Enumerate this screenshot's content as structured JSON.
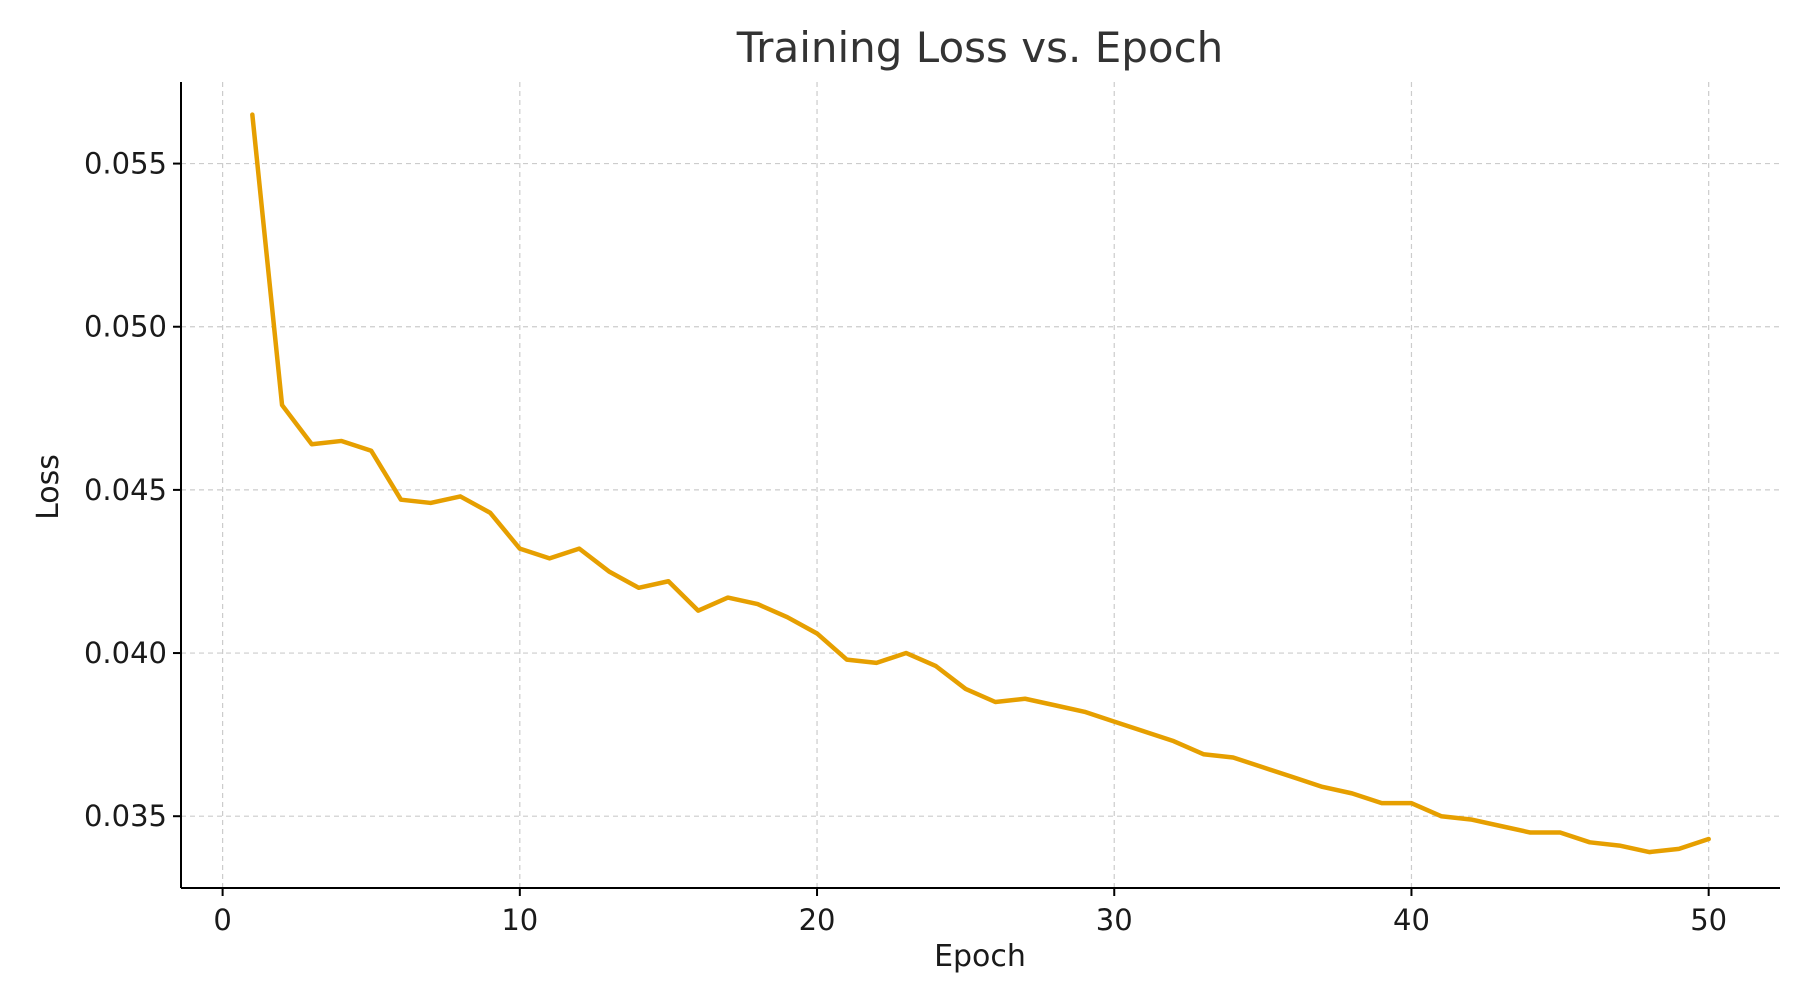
{
  "chart_data": {
    "type": "line",
    "title": "Training Loss vs. Epoch",
    "xlabel": "Epoch",
    "ylabel": "Loss",
    "xlim": [
      -1.4,
      52.4
    ],
    "ylim": [
      0.0328,
      0.0575
    ],
    "x_ticks": [
      0,
      10,
      20,
      30,
      40,
      50
    ],
    "x_tick_labels": [
      "0",
      "10",
      "20",
      "30",
      "40",
      "50"
    ],
    "y_ticks": [
      0.035,
      0.04,
      0.045,
      0.05,
      0.055
    ],
    "y_tick_labels": [
      "0.035",
      "0.040",
      "0.045",
      "0.050",
      "0.055"
    ],
    "grid": true,
    "legend": "none",
    "line_color": "#E69F00",
    "x": [
      1,
      2,
      3,
      4,
      5,
      6,
      7,
      8,
      9,
      10,
      11,
      12,
      13,
      14,
      15,
      16,
      17,
      18,
      19,
      20,
      21,
      22,
      23,
      24,
      25,
      26,
      27,
      28,
      29,
      30,
      31,
      32,
      33,
      34,
      35,
      36,
      37,
      38,
      39,
      40,
      41,
      42,
      43,
      44,
      45,
      46,
      47,
      48,
      49,
      50
    ],
    "series": [
      {
        "values": [
          0.0565,
          0.0476,
          0.0464,
          0.0465,
          0.0462,
          0.0447,
          0.0446,
          0.0448,
          0.0443,
          0.0432,
          0.0429,
          0.0432,
          0.0425,
          0.042,
          0.0422,
          0.0413,
          0.0417,
          0.0415,
          0.0411,
          0.0406,
          0.0398,
          0.0397,
          0.04,
          0.0396,
          0.0389,
          0.0385,
          0.0386,
          0.0384,
          0.0382,
          0.0379,
          0.0376,
          0.0373,
          0.0369,
          0.0368,
          0.0365,
          0.0362,
          0.0359,
          0.0357,
          0.0354,
          0.0354,
          0.035,
          0.0349,
          0.0347,
          0.0345,
          0.0345,
          0.0342,
          0.0341,
          0.0339,
          0.034,
          0.0343
        ]
      }
    ]
  }
}
